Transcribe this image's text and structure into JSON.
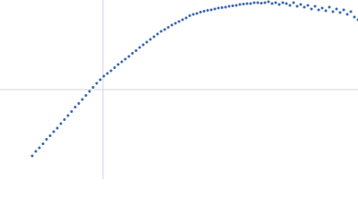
{
  "chart_data": {
    "type": "scatter",
    "x": [
      36,
      40,
      44,
      48,
      52,
      56,
      60,
      64,
      68,
      72,
      76,
      80,
      84,
      88,
      92,
      96,
      100,
      104,
      108,
      112,
      116,
      120,
      124,
      128,
      132,
      136,
      140,
      144,
      148,
      152,
      156,
      160,
      164,
      168,
      172,
      176,
      180,
      184,
      188,
      192,
      196,
      200,
      204,
      208,
      212,
      216,
      220,
      224,
      228,
      232,
      236,
      240,
      244,
      248,
      252,
      256,
      260,
      264,
      268,
      272,
      276,
      280,
      284,
      288,
      292,
      296,
      300,
      304,
      308,
      312,
      316,
      320,
      324,
      328,
      332,
      336,
      340,
      344,
      348,
      352,
      356,
      360,
      364,
      368,
      372,
      376,
      380,
      384,
      388,
      392,
      396,
      400
    ],
    "series": [
      {
        "color": "#3a68b0",
        "values": [
          26,
          31,
          35,
          39.5,
          44.5,
          48.5,
          53,
          57,
          62,
          66.5,
          71,
          75.5,
          80.5,
          84.5,
          89,
          93.5,
          98,
          102.5,
          107,
          111,
          115,
          118,
          121,
          124.5,
          128,
          131,
          134,
          137,
          140.5,
          143.5,
          147,
          150,
          153,
          156,
          159,
          162,
          165,
          167,
          169.5,
          172,
          174,
          176,
          178,
          180,
          182.5,
          184,
          185,
          186.5,
          187.5,
          188.5,
          189,
          190,
          191,
          191.5,
          192,
          193,
          193.5,
          194,
          195,
          195.5,
          196,
          196,
          197,
          197,
          196.5,
          197,
          198,
          196,
          197,
          195,
          197,
          196,
          194,
          197,
          193,
          195,
          192,
          194,
          190,
          193,
          189,
          191,
          188,
          192,
          187,
          190,
          186,
          189,
          184,
          187,
          181,
          178
        ]
      }
    ],
    "xlim": [
      0,
      400
    ],
    "ylim": [
      0,
      200
    ],
    "xticks": [
      115
    ],
    "yticks": [
      100
    ],
    "grid": true
  }
}
